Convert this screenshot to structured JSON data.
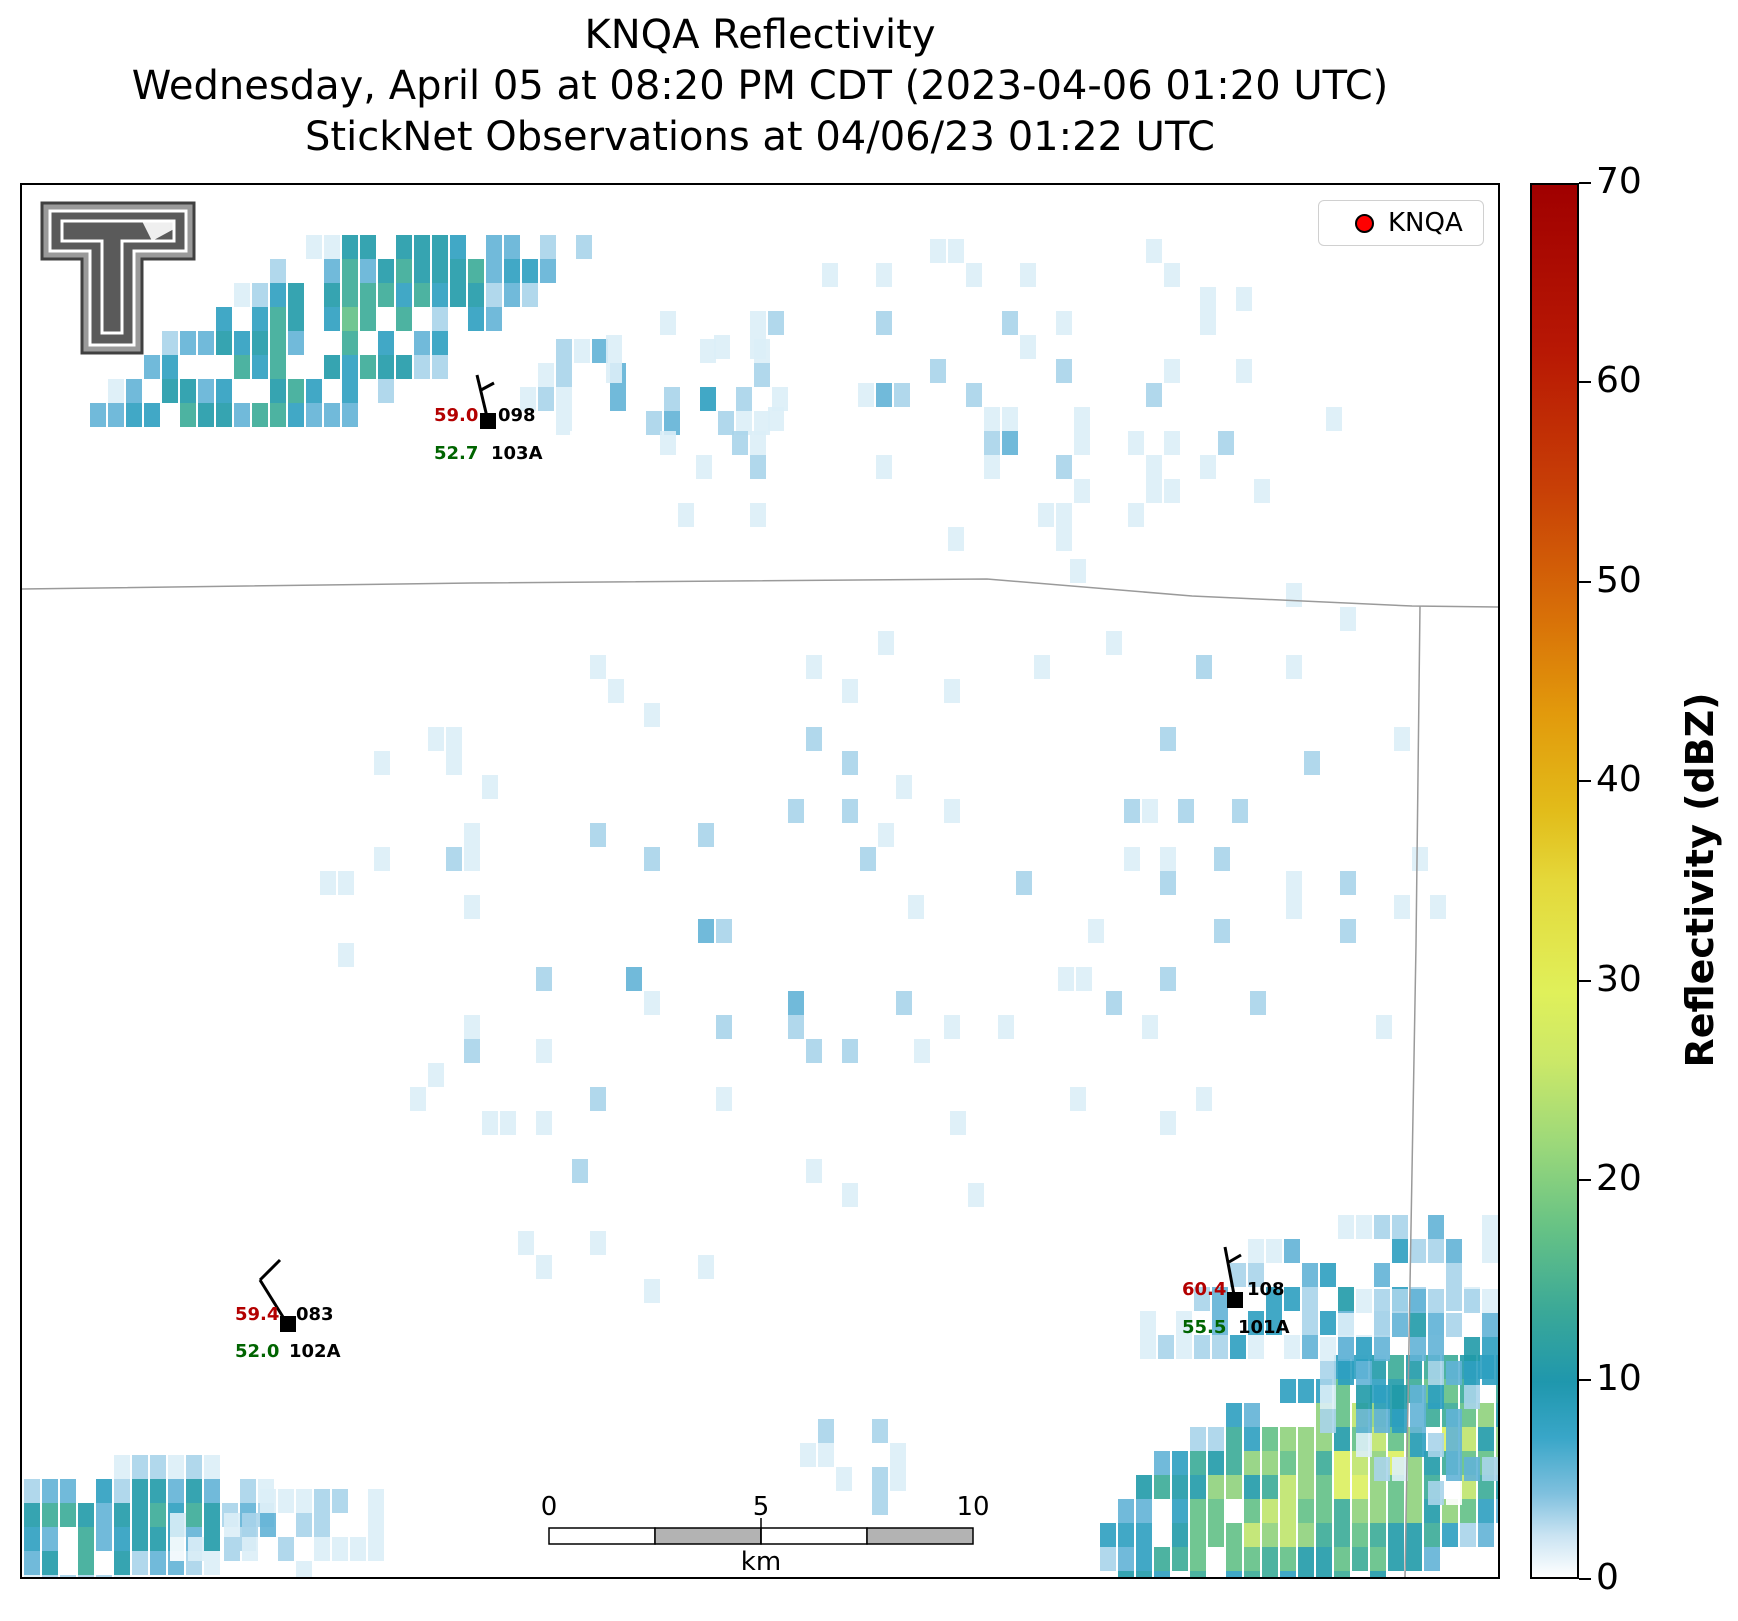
{
  "title": {
    "line1": "KNQA Reflectivity",
    "line2": "Wednesday, April 05 at 08:20 PM CDT (2023-04-06 01:20 UTC)",
    "line3": "StickNet Observations at 04/06/23 01:22 UTC"
  },
  "legend": {
    "label": "KNQA",
    "marker_color": "#ff0000"
  },
  "colorbar": {
    "label": "Reflectivity (dBZ)",
    "ticks": [
      "0",
      "10",
      "20",
      "30",
      "40",
      "50",
      "60",
      "70"
    ],
    "range": [
      0,
      70
    ]
  },
  "scalebar": {
    "labels": [
      "0",
      "5",
      "10"
    ],
    "unit": "km"
  },
  "stations": [
    {
      "temp": "59.0",
      "dewpoint": "52.7",
      "wind_dir": "098",
      "id": "103A"
    },
    {
      "temp": "59.4",
      "dewpoint": "52.0",
      "wind_dir": "083",
      "id": "102A"
    },
    {
      "temp": "60.4",
      "dewpoint": "55.5",
      "wind_dir": "108",
      "id": "101A"
    }
  ],
  "logo": {
    "name": "texas-tech-double-t-logo"
  },
  "colors": {
    "temp": "#b30000",
    "dewpoint": "#006400"
  }
}
